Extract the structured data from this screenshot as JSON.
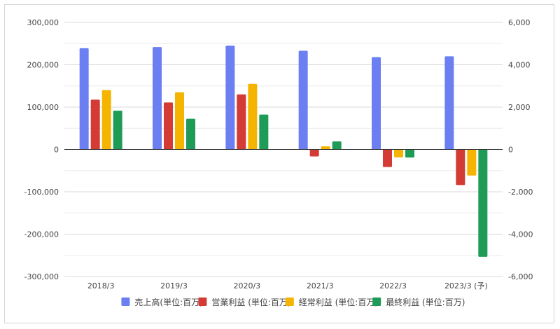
{
  "chart_data": {
    "type": "bar",
    "categories": [
      "2018/3",
      "2019/3",
      "2020/3",
      "2021/3",
      "2022/3",
      "2023/3 (予)"
    ],
    "series": [
      {
        "name": "売上高(単位:百万)",
        "axis": "left",
        "color": "#6b7ff2",
        "values": [
          239000,
          242000,
          245000,
          233000,
          218000,
          220000
        ]
      },
      {
        "name": "営業利益 (単位:百万)",
        "axis": "right",
        "color": "#d33b34",
        "values": [
          2350,
          2220,
          2600,
          -330,
          -830,
          -1680
        ]
      },
      {
        "name": "経常利益 (単位:百万)",
        "axis": "right",
        "color": "#f4b400",
        "values": [
          2800,
          2700,
          3100,
          150,
          -370,
          -1230
        ]
      },
      {
        "name": "最終利益 (単位:百万)",
        "axis": "right",
        "color": "#1e9c57",
        "values": [
          1830,
          1450,
          1650,
          380,
          -380,
          -5070
        ]
      }
    ],
    "left_axis": {
      "ylim": [
        -300000,
        300000
      ],
      "ticks": [
        300000,
        200000,
        100000,
        0,
        -100000,
        -200000,
        -300000
      ],
      "tick_labels": [
        "300,000",
        "200,000",
        "100,000",
        "0",
        "-100,000",
        "-200,000",
        "-300,000"
      ]
    },
    "right_axis": {
      "ylim": [
        -6000,
        6000
      ],
      "ticks": [
        6000,
        4000,
        2000,
        0,
        -2000,
        -4000,
        -6000
      ],
      "tick_labels": [
        "6,000",
        "4,000",
        "2,000",
        "0",
        "-2,000",
        "-4,000",
        "-6,000"
      ]
    },
    "grid": true,
    "legend_position": "bottom"
  }
}
